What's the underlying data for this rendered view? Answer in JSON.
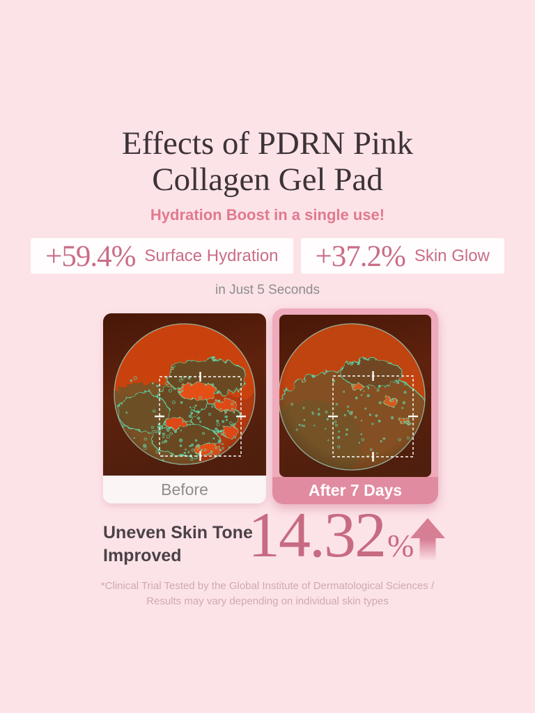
{
  "header": {
    "title_line1": "Effects of PDRN Pink",
    "title_line2": "Collagen Gel Pad",
    "subtitle": "Hydration Boost in a single use!"
  },
  "stats": {
    "cards": [
      {
        "value": "+59.4%",
        "label": "Surface Hydration"
      },
      {
        "value": "+37.2%",
        "label": "Skin Glow"
      }
    ],
    "duration_note": "in Just 5 Seconds"
  },
  "comparison": {
    "before_label": "Before",
    "after_label": "After 7 Days",
    "before_image": "microscope-skin-before",
    "after_image": "microscope-skin-after"
  },
  "improvement": {
    "label_line1": "Uneven Skin Tone",
    "label_line2": "Improved",
    "value": "14.32",
    "unit": "%",
    "arrow_icon": "up-arrow-icon"
  },
  "footnote": {
    "line1": "*Clinical Trial Tested by the Global Institute of Dermatological Sciences /",
    "line2": "Results may vary depending on individual skin types"
  },
  "colors": {
    "background": "#fce3e8",
    "title_text": "#3c3338",
    "accent_pink": "#e0798f",
    "stat_pink": "#c96d86",
    "after_badge_pink": "#e18ba0",
    "after_border_pink": "#efaabc",
    "number_pink": "#c76b82",
    "muted_gray": "#8d8d8d",
    "footnote_pink_gray": "#cfa8b2"
  }
}
